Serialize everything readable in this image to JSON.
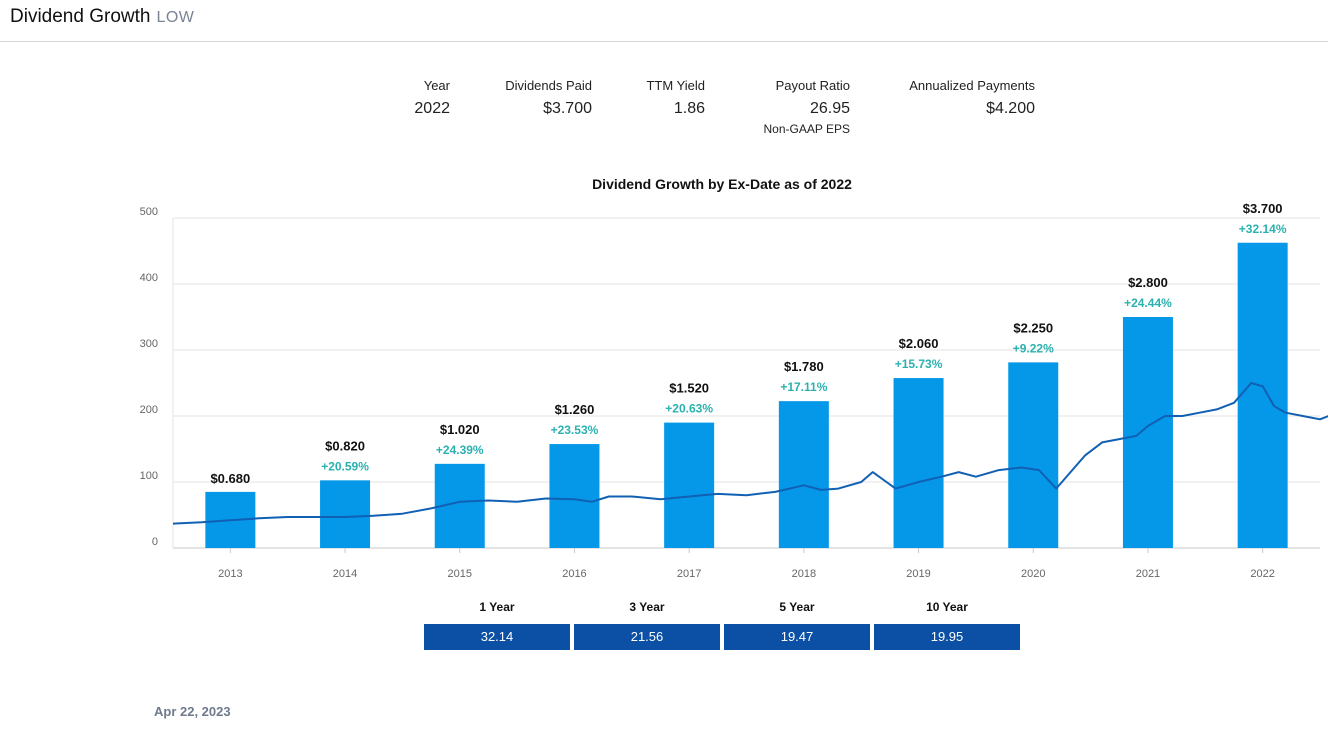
{
  "header": {
    "title": "Dividend Growth",
    "ticker": "LOW"
  },
  "stats": [
    {
      "label": "Year",
      "value": "2022",
      "sub": ""
    },
    {
      "label": "Dividends Paid",
      "value": "$3.700",
      "sub": ""
    },
    {
      "label": "TTM Yield",
      "value": "1.86",
      "sub": ""
    },
    {
      "label": "Payout Ratio",
      "value": "26.95",
      "sub": "Non-GAAP EPS"
    },
    {
      "label": "Annualized Payments",
      "value": "$4.200",
      "sub": ""
    }
  ],
  "chart_data": {
    "type": "bar",
    "title": "Dividend Growth by Ex-Date as of 2022",
    "categories": [
      "2013",
      "2014",
      "2015",
      "2016",
      "2017",
      "2018",
      "2019",
      "2020",
      "2021",
      "2022"
    ],
    "bar_labels": [
      "$0.680",
      "$0.820",
      "$1.020",
      "$1.260",
      "$1.520",
      "$1.780",
      "$2.060",
      "$2.250",
      "$2.800",
      "$3.700"
    ],
    "values": [
      0.68,
      0.82,
      1.02,
      1.26,
      1.52,
      1.78,
      2.06,
      2.25,
      2.8,
      3.7
    ],
    "growth_labels": [
      "",
      "+20.59%",
      "+24.39%",
      "+23.53%",
      "+20.63%",
      "+17.11%",
      "+15.73%",
      "+9.22%",
      "+24.44%",
      "+32.14%"
    ],
    "yticks": [
      "0",
      "100",
      "200",
      "300",
      "400",
      "500"
    ],
    "ylim": [
      0,
      500
    ],
    "bar_axis_max": 4.0,
    "line_series": {
      "points": [
        [
          2012.5,
          37
        ],
        [
          2012.75,
          39
        ],
        [
          2013.0,
          42
        ],
        [
          2013.25,
          45
        ],
        [
          2013.5,
          47
        ],
        [
          2013.75,
          47
        ],
        [
          2014.0,
          47
        ],
        [
          2014.25,
          49
        ],
        [
          2014.5,
          52
        ],
        [
          2014.75,
          60
        ],
        [
          2015.0,
          70
        ],
        [
          2015.25,
          72
        ],
        [
          2015.5,
          70
        ],
        [
          2015.75,
          75
        ],
        [
          2016.0,
          74
        ],
        [
          2016.15,
          70
        ],
        [
          2016.3,
          78
        ],
        [
          2016.5,
          78
        ],
        [
          2016.75,
          74
        ],
        [
          2017.0,
          78
        ],
        [
          2017.25,
          82
        ],
        [
          2017.5,
          80
        ],
        [
          2017.75,
          85
        ],
        [
          2018.0,
          95
        ],
        [
          2018.15,
          88
        ],
        [
          2018.3,
          90
        ],
        [
          2018.5,
          100
        ],
        [
          2018.6,
          115
        ],
        [
          2018.8,
          90
        ],
        [
          2019.0,
          100
        ],
        [
          2019.2,
          108
        ],
        [
          2019.35,
          115
        ],
        [
          2019.5,
          108
        ],
        [
          2019.7,
          118
        ],
        [
          2019.9,
          122
        ],
        [
          2020.05,
          118
        ],
        [
          2020.2,
          90
        ],
        [
          2020.3,
          110
        ],
        [
          2020.45,
          140
        ],
        [
          2020.6,
          160
        ],
        [
          2020.75,
          165
        ],
        [
          2020.9,
          170
        ],
        [
          2021.0,
          185
        ],
        [
          2021.15,
          200
        ],
        [
          2021.3,
          200
        ],
        [
          2021.45,
          205
        ],
        [
          2021.6,
          210
        ],
        [
          2021.75,
          220
        ],
        [
          2021.9,
          250
        ],
        [
          2022.0,
          245
        ],
        [
          2022.1,
          215
        ],
        [
          2022.2,
          205
        ],
        [
          2022.35,
          200
        ],
        [
          2022.5,
          195
        ],
        [
          2022.65,
          205
        ],
        [
          2022.8,
          210
        ],
        [
          2022.95,
          205
        ],
        [
          2023.1,
          210
        ]
      ]
    }
  },
  "growth_table": {
    "headers": [
      "1 Year",
      "3 Year",
      "5 Year",
      "10 Year"
    ],
    "values": [
      "32.14",
      "21.56",
      "19.47",
      "19.95"
    ]
  },
  "footer": {
    "date": "Apr 22, 2023"
  },
  "colors": {
    "bar": "#0598e8",
    "line": "#1160b4",
    "growth_text": "#2bb2b0",
    "box": "#0b50a4"
  }
}
